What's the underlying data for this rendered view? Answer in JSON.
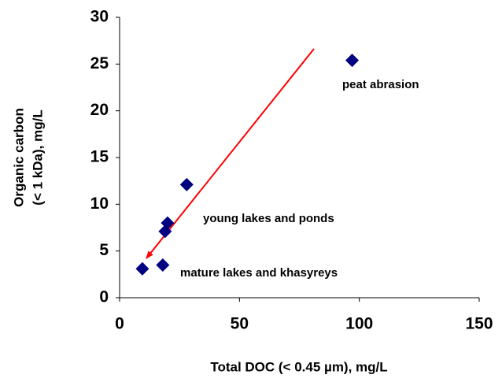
{
  "chart_data": {
    "type": "scatter",
    "x_label": "Total DOC (< 0.45 µm), mg/L",
    "y_label": [
      "Organic carbon",
      "(< 1 kDa), mg/L"
    ],
    "series": [
      {
        "color": "#000080",
        "x": [
          9.5,
          18,
          19,
          20,
          28,
          97
        ],
        "values": [
          3.1,
          3.5,
          7.1,
          8.0,
          12.1,
          25.4
        ]
      }
    ],
    "annotations": [
      "peat abrasion",
      "young lakes and ponds",
      "mature lakes and khasyreys"
    ],
    "arrow_color": "#ff0000",
    "xlim": [
      0,
      150
    ],
    "xticks": [
      0,
      50,
      100,
      150
    ],
    "ylim": [
      0,
      30
    ],
    "yticks": [
      0,
      5,
      10,
      15,
      20,
      25,
      30
    ],
    "grid": false
  }
}
